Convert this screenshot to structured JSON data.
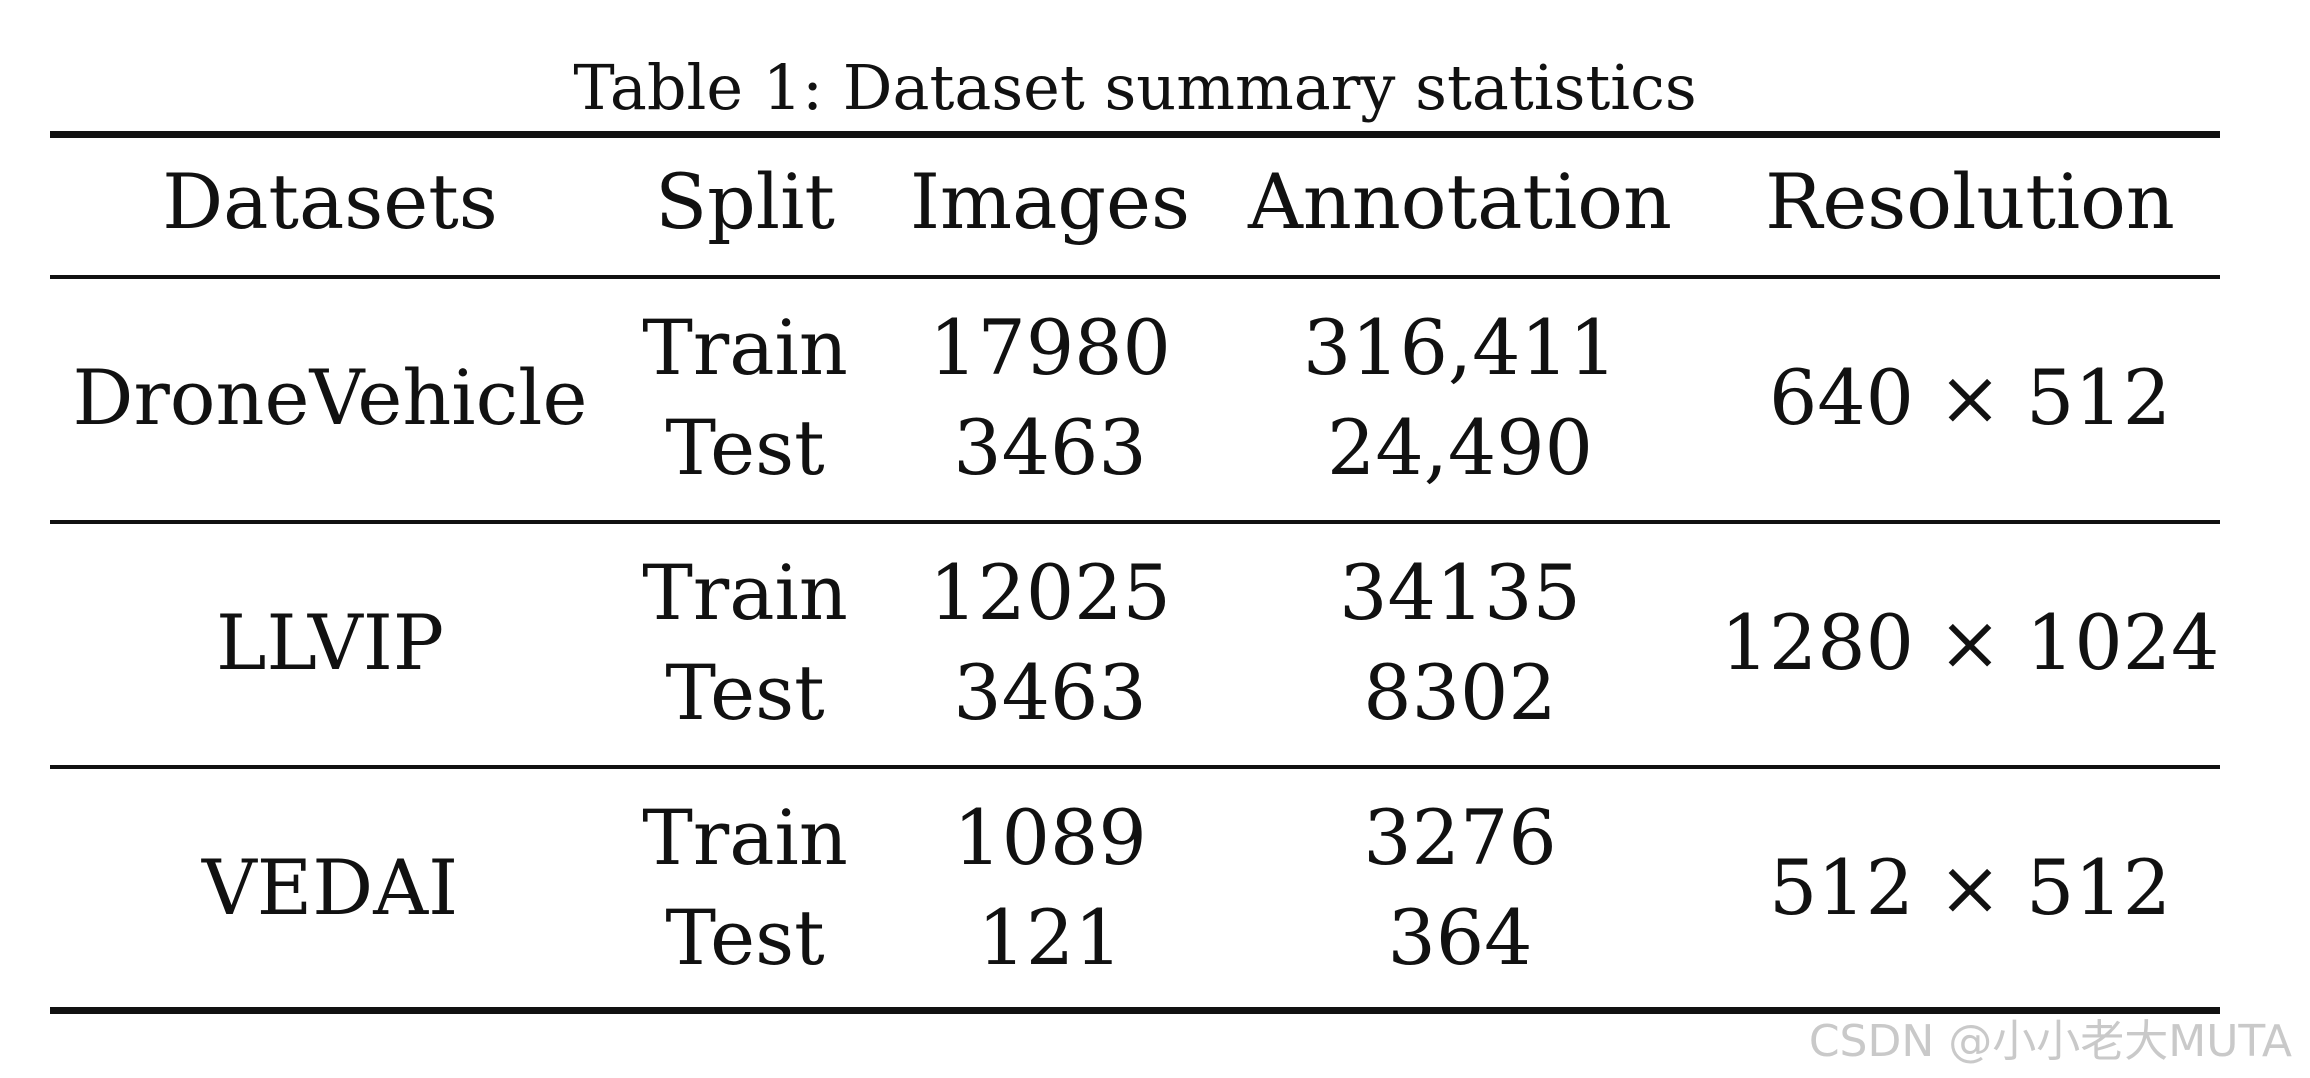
{
  "caption": "Table 1: Dataset summary statistics",
  "columns": [
    "Datasets",
    "Split",
    "Images",
    "Annotation",
    "Resolution"
  ],
  "rows": [
    {
      "dataset": "DroneVehicle",
      "resolution": "640 × 512",
      "splits": [
        {
          "split": "Train",
          "images": "17980",
          "annotation": "316,411"
        },
        {
          "split": "Test",
          "images": "3463",
          "annotation": "24,490"
        }
      ]
    },
    {
      "dataset": "LLVIP",
      "resolution": "1280 × 1024",
      "splits": [
        {
          "split": "Train",
          "images": "12025",
          "annotation": "34135"
        },
        {
          "split": "Test",
          "images": "3463",
          "annotation": "8302"
        }
      ]
    },
    {
      "dataset": "VEDAI",
      "resolution": "512 × 512",
      "splits": [
        {
          "split": "Train",
          "images": "1089",
          "annotation": "3276"
        },
        {
          "split": "Test",
          "images": "121",
          "annotation": "364"
        }
      ]
    }
  ],
  "watermark": "CSDN @小小老大MUTA"
}
